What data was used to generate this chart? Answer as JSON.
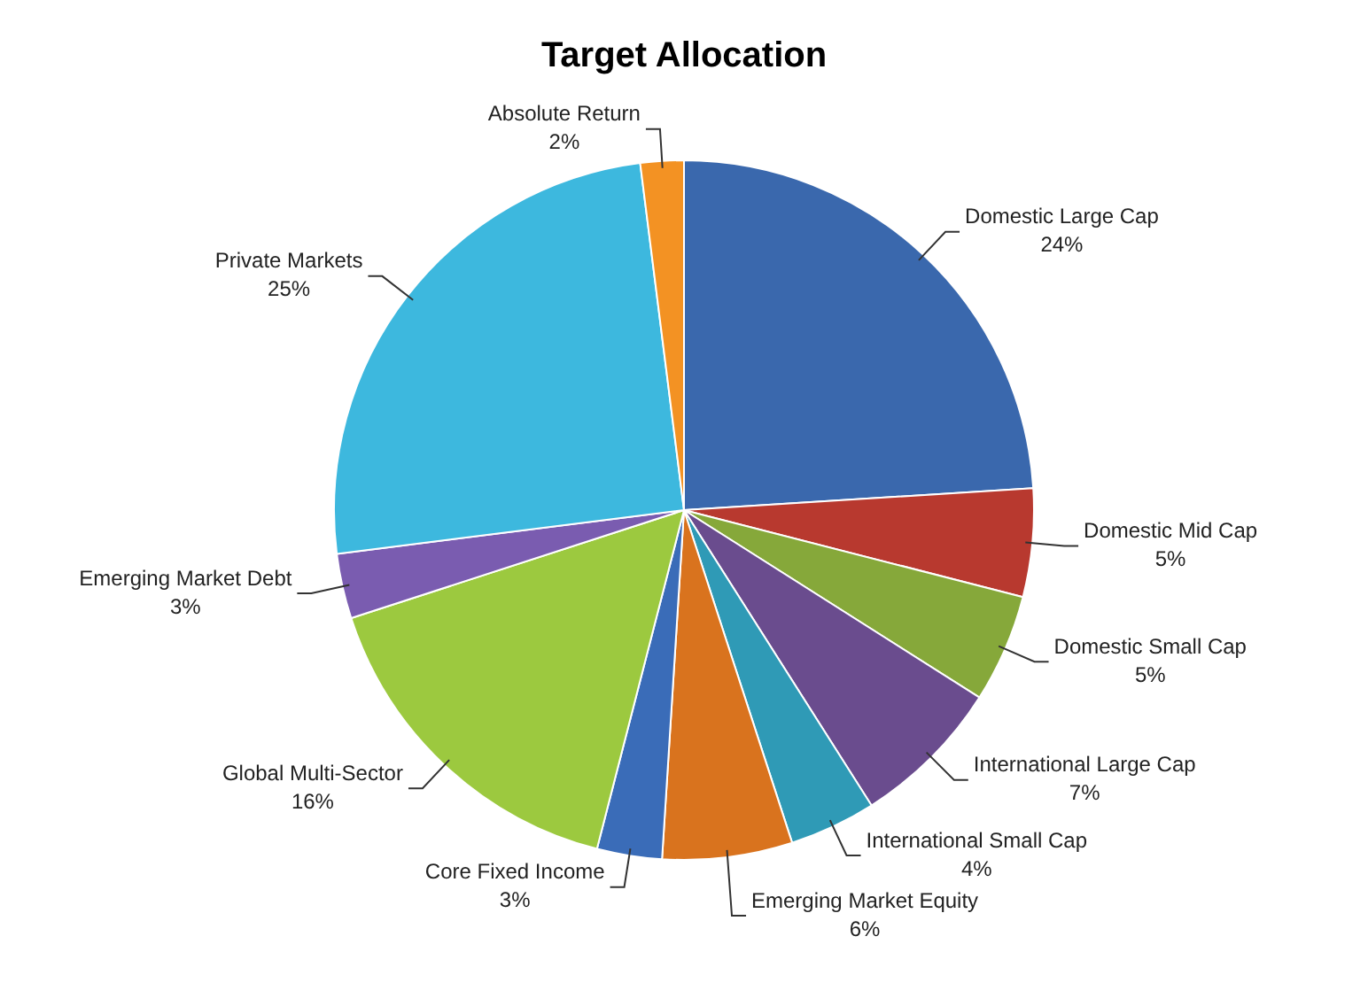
{
  "chart_data": {
    "type": "pie",
    "title": "Target Allocation",
    "categories": [
      "Domestic Large Cap",
      "Domestic Mid Cap",
      "Domestic Small Cap",
      "International Large Cap",
      "International Small Cap",
      "Emerging Market Equity",
      "Core Fixed Income",
      "Global Multi-Sector",
      "Emerging Market Debt",
      "Private Markets",
      "Absolute Return"
    ],
    "values": [
      24,
      5,
      5,
      7,
      4,
      6,
      3,
      16,
      3,
      25,
      2
    ],
    "value_labels": [
      "24%",
      "5%",
      "5%",
      "7%",
      "4%",
      "6%",
      "3%",
      "16%",
      "3%",
      "25%",
      "2%"
    ],
    "colors": [
      "#3a68ad",
      "#b8392f",
      "#86a83a",
      "#6a4c8e",
      "#2f9ab6",
      "#d9731e",
      "#3a6cb8",
      "#9cc93f",
      "#7a5cb0",
      "#3db8de",
      "#f39223"
    ],
    "legend": false
  }
}
